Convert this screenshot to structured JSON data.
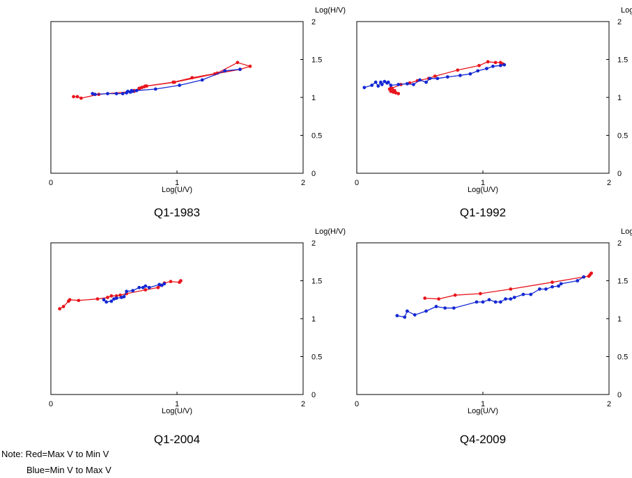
{
  "colors": {
    "red": "#e8141c",
    "blue": "#1428d2"
  },
  "note": {
    "line1": "Note: Red=Max V to Min V",
    "line2": "Blue=Min V to Max V"
  },
  "chart_data": [
    {
      "type": "line",
      "title": "Q1-1983",
      "xlabel": "Log(U/V)",
      "ylabel": "Log(H/V)",
      "xlim": [
        0,
        2
      ],
      "ylim": [
        0,
        2
      ],
      "xticks": [
        "0",
        "1",
        "2"
      ],
      "yticks": [
        "0",
        "0.5",
        "1",
        "1.5",
        "2"
      ],
      "series": [
        {
          "color": "red",
          "x": [
            0.18,
            0.21,
            0.24,
            0.38,
            0.66,
            0.7,
            0.72,
            0.75,
            0.97,
            1.12,
            1.32,
            1.48,
            1.58,
            1.5,
            1.3,
            0.98,
            0.76,
            0.74,
            0.72,
            0.7,
            0.66
          ],
          "y": [
            1.01,
            1.01,
            0.99,
            1.04,
            1.08,
            1.12,
            1.13,
            1.15,
            1.2,
            1.26,
            1.32,
            1.46,
            1.41,
            1.37,
            1.31,
            1.2,
            1.15,
            1.14,
            1.13,
            1.11,
            1.09
          ]
        },
        {
          "color": "blue",
          "x": [
            0.33,
            0.35,
            0.45,
            0.52,
            0.57,
            0.6,
            0.61,
            0.63,
            0.64,
            0.65,
            0.68,
            0.83,
            1.02,
            1.2,
            1.38,
            1.5
          ],
          "y": [
            1.05,
            1.04,
            1.05,
            1.05,
            1.05,
            1.06,
            1.08,
            1.07,
            1.09,
            1.08,
            1.09,
            1.11,
            1.16,
            1.23,
            1.35,
            1.37
          ]
        }
      ]
    },
    {
      "type": "line",
      "title": "Q1-1992",
      "xlabel": "Log(U/V)",
      "ylabel": "Log(H/V)",
      "xlim": [
        0,
        2
      ],
      "ylim": [
        0,
        2
      ],
      "xticks": [
        "0",
        "1",
        "2"
      ],
      "yticks": [
        "0",
        "0.5",
        "1",
        "1.5",
        "2"
      ],
      "series": [
        {
          "color": "red",
          "x": [
            0.27,
            0.29,
            0.28,
            0.31,
            0.33,
            0.3,
            0.27,
            0.26,
            0.35,
            0.42,
            0.48,
            0.57,
            0.62,
            0.8,
            0.97,
            1.04,
            1.1,
            1.14,
            1.16
          ],
          "y": [
            1.08,
            1.07,
            1.12,
            1.06,
            1.05,
            1.09,
            1.12,
            1.11,
            1.17,
            1.19,
            1.22,
            1.25,
            1.28,
            1.36,
            1.42,
            1.47,
            1.46,
            1.46,
            1.44
          ]
        },
        {
          "color": "blue",
          "x": [
            0.06,
            0.12,
            0.15,
            0.17,
            0.19,
            0.2,
            0.22,
            0.24,
            0.25,
            0.27,
            0.33,
            0.4,
            0.45,
            0.5,
            0.55,
            0.58,
            0.64,
            0.72,
            0.82,
            0.9,
            0.96,
            1.03,
            1.08,
            1.14,
            1.17
          ],
          "y": [
            1.13,
            1.16,
            1.2,
            1.15,
            1.2,
            1.17,
            1.21,
            1.19,
            1.2,
            1.16,
            1.17,
            1.18,
            1.17,
            1.23,
            1.2,
            1.25,
            1.25,
            1.27,
            1.29,
            1.31,
            1.35,
            1.38,
            1.41,
            1.42,
            1.43
          ]
        }
      ]
    },
    {
      "type": "line",
      "title": "Q1-2004",
      "xlabel": "Log(U/V)",
      "ylabel": "Log(H/V)",
      "xlim": [
        0,
        2
      ],
      "ylim": [
        0,
        2
      ],
      "xticks": [
        "0",
        "1",
        "2"
      ],
      "yticks": [
        "0",
        "0.5",
        "1",
        "1.5",
        "2"
      ],
      "series": [
        {
          "color": "red",
          "x": [
            0.07,
            0.1,
            0.14,
            0.15,
            0.22,
            0.37,
            0.45,
            0.48,
            0.52,
            0.55,
            0.6,
            0.75,
            0.85,
            0.88,
            0.9,
            0.95,
            1.02,
            1.03
          ],
          "y": [
            1.13,
            1.16,
            1.23,
            1.25,
            1.24,
            1.26,
            1.28,
            1.3,
            1.3,
            1.31,
            1.33,
            1.38,
            1.41,
            1.44,
            1.47,
            1.49,
            1.48,
            1.5
          ]
        },
        {
          "color": "blue",
          "x": [
            0.42,
            0.44,
            0.48,
            0.5,
            0.52,
            0.56,
            0.58,
            0.6,
            0.65,
            0.7,
            0.73,
            0.75,
            0.78,
            0.86,
            0.88,
            0.9
          ],
          "y": [
            1.25,
            1.22,
            1.23,
            1.26,
            1.27,
            1.28,
            1.29,
            1.36,
            1.37,
            1.41,
            1.41,
            1.43,
            1.41,
            1.45,
            1.44,
            1.46
          ]
        }
      ]
    },
    {
      "type": "line",
      "title": "Q4-2009",
      "xlabel": "Log(U/V)",
      "ylabel": "Log(H/V)",
      "xlim": [
        0,
        2
      ],
      "ylim": [
        0,
        2
      ],
      "xticks": [
        "0",
        "1",
        "2"
      ],
      "yticks": [
        "0",
        "0.5",
        "1",
        "1.5",
        "2"
      ],
      "series": [
        {
          "color": "red",
          "x": [
            0.54,
            0.65,
            0.78,
            0.98,
            1.22,
            1.55,
            1.8,
            1.84,
            1.86,
            1.85
          ],
          "y": [
            1.27,
            1.26,
            1.31,
            1.33,
            1.39,
            1.48,
            1.55,
            1.56,
            1.6,
            1.58
          ]
        },
        {
          "color": "blue",
          "x": [
            0.32,
            0.38,
            0.4,
            0.46,
            0.55,
            0.63,
            0.7,
            0.77,
            0.95,
            1.0,
            1.05,
            1.1,
            1.14,
            1.18,
            1.22,
            1.25,
            1.32,
            1.38,
            1.45,
            1.5,
            1.55,
            1.6,
            1.62,
            1.75,
            1.8
          ],
          "y": [
            1.04,
            1.02,
            1.1,
            1.05,
            1.1,
            1.16,
            1.14,
            1.14,
            1.22,
            1.22,
            1.25,
            1.22,
            1.22,
            1.26,
            1.26,
            1.28,
            1.32,
            1.32,
            1.39,
            1.39,
            1.42,
            1.43,
            1.46,
            1.5,
            1.55
          ]
        }
      ]
    }
  ]
}
